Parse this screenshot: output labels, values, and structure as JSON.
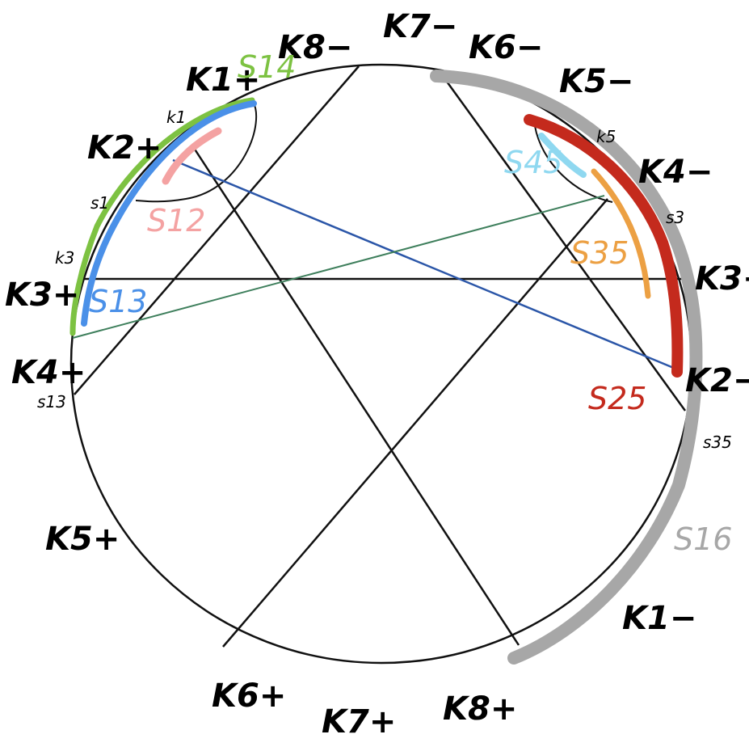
{
  "labels": {
    "k8_minus": "K8−",
    "k7_minus": "K7−",
    "k6_minus": "K6−",
    "k5_minus": "K5−",
    "k4_minus": "K4−",
    "k3_minus": "K3−",
    "k2_minus": "K2−",
    "k1_minus": "K1−",
    "k1_plus": "K1+",
    "k2_plus": "K2+",
    "k3_plus": "K3+",
    "k4_plus": "K4+",
    "k5_plus": "K5+",
    "k6_plus": "K6+",
    "k7_plus": "K7+",
    "k8_plus": "K8+"
  },
  "point_labels": {
    "k1": "k1",
    "k3": "k3",
    "k5": "k5",
    "s1": "s1",
    "s3": "s3",
    "s13": "s13",
    "s35": "s35"
  },
  "segments": {
    "s14": "S14",
    "s12": "S12",
    "s13": "S13",
    "s45": "S45",
    "s35": "S35",
    "s25": "S25",
    "s16": "S16"
  },
  "colors": {
    "s14": "#7dc242",
    "s12": "#f4a2a2",
    "s13": "#4a90e8",
    "s45": "#8fd8f0",
    "s35": "#eca043",
    "s25": "#c42a1d",
    "s16": "#a7a7a7",
    "chord_blue": "#2b56a8",
    "chord_green": "#3e7f5c",
    "black": "#111111"
  }
}
